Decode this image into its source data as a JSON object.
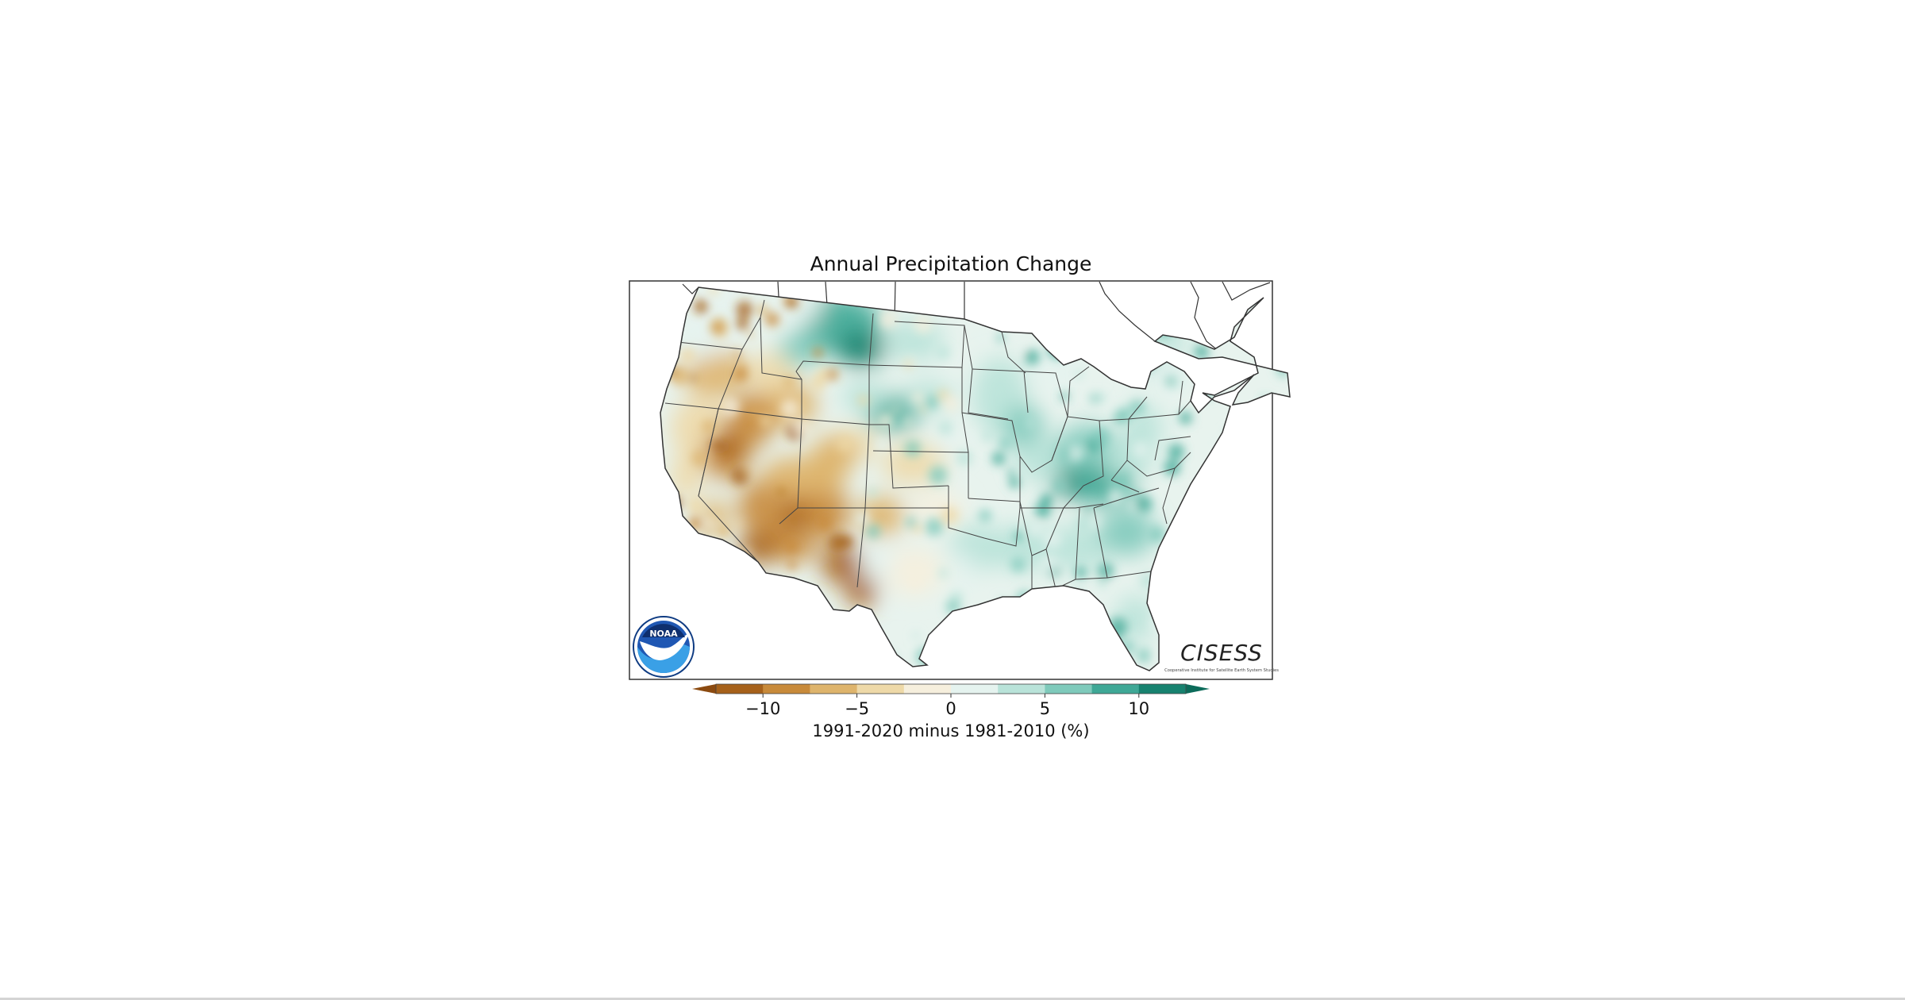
{
  "map": {
    "title": "Annual Precipitation Change",
    "region": "Contiguous United States",
    "colorbar": {
      "label": "1991-2020 minus 1981-2010 (%)",
      "ticks": [
        {
          "value": -10,
          "label": "−10"
        },
        {
          "value": -5,
          "label": "−5"
        },
        {
          "value": 0,
          "label": "0"
        },
        {
          "value": 5,
          "label": "5"
        },
        {
          "value": 10,
          "label": "10"
        }
      ],
      "range": [
        -12.5,
        12.5
      ],
      "bin_edges": [
        -12.5,
        -10,
        -7.5,
        -5,
        -2.5,
        0,
        2.5,
        5,
        7.5,
        10,
        12.5
      ],
      "colors": [
        "#a6611a",
        "#c88a3a",
        "#deb46c",
        "#eed9a8",
        "#f6efdd",
        "#e5f3ef",
        "#b9e3d9",
        "#7fcabb",
        "#3fa896",
        "#17826f"
      ],
      "extend_low_color": "#8b4a10",
      "extend_high_color": "#0c6b5a"
    },
    "logos": {
      "noaa": {
        "text": "NOAA"
      },
      "cisess": {
        "text": "CISESS",
        "subtitle": "Cooperative Institute for Satellite Earth System Studies"
      }
    }
  }
}
